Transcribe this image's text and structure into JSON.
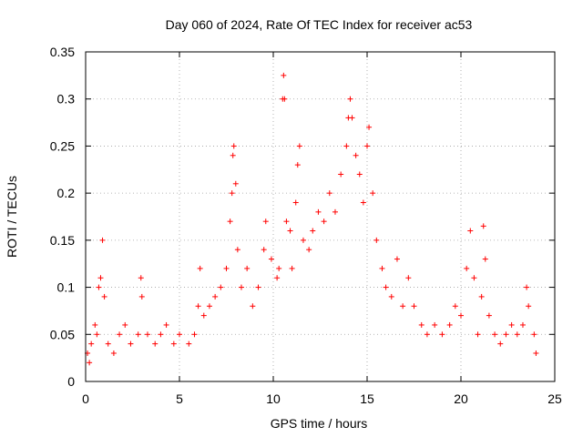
{
  "chart_data": {
    "type": "scatter",
    "title": "Day 060 of 2024, Rate Of TEC Index for receiver ac53",
    "xlabel": "GPS time / hours",
    "ylabel": "ROTI / TECUs",
    "xlim": [
      0,
      25
    ],
    "ylim": [
      0,
      0.35
    ],
    "x_ticks": [
      "0",
      "5",
      "10",
      "15",
      "20",
      "25"
    ],
    "y_ticks": [
      "0",
      "0.05",
      "0.1",
      "0.15",
      "0.2",
      "0.25",
      "0.3",
      "0.35"
    ],
    "grid": true,
    "marker": "+",
    "color": "#ff0000",
    "points": [
      [
        0.1,
        0.03
      ],
      [
        0.2,
        0.02
      ],
      [
        0.3,
        0.04
      ],
      [
        0.5,
        0.06
      ],
      [
        0.6,
        0.05
      ],
      [
        0.7,
        0.1
      ],
      [
        0.8,
        0.11
      ],
      [
        0.9,
        0.15
      ],
      [
        1.0,
        0.09
      ],
      [
        1.2,
        0.04
      ],
      [
        1.5,
        0.03
      ],
      [
        1.8,
        0.05
      ],
      [
        2.1,
        0.06
      ],
      [
        2.4,
        0.04
      ],
      [
        2.8,
        0.05
      ],
      [
        2.95,
        0.11
      ],
      [
        3.0,
        0.09
      ],
      [
        3.3,
        0.05
      ],
      [
        3.7,
        0.04
      ],
      [
        4.0,
        0.05
      ],
      [
        4.3,
        0.06
      ],
      [
        4.7,
        0.04
      ],
      [
        5.0,
        0.05
      ],
      [
        5.5,
        0.04
      ],
      [
        5.8,
        0.05
      ],
      [
        6.0,
        0.08
      ],
      [
        6.1,
        0.12
      ],
      [
        6.3,
        0.07
      ],
      [
        6.6,
        0.08
      ],
      [
        6.9,
        0.09
      ],
      [
        7.2,
        0.1
      ],
      [
        7.5,
        0.12
      ],
      [
        7.7,
        0.17
      ],
      [
        7.8,
        0.2
      ],
      [
        7.85,
        0.24
      ],
      [
        7.9,
        0.25
      ],
      [
        8.0,
        0.21
      ],
      [
        8.1,
        0.14
      ],
      [
        8.3,
        0.1
      ],
      [
        8.6,
        0.12
      ],
      [
        8.9,
        0.08
      ],
      [
        9.2,
        0.1
      ],
      [
        9.5,
        0.14
      ],
      [
        9.6,
        0.17
      ],
      [
        9.9,
        0.13
      ],
      [
        10.2,
        0.11
      ],
      [
        10.3,
        0.12
      ],
      [
        10.5,
        0.3
      ],
      [
        10.55,
        0.325
      ],
      [
        10.6,
        0.3
      ],
      [
        10.7,
        0.17
      ],
      [
        10.9,
        0.16
      ],
      [
        11.0,
        0.12
      ],
      [
        11.2,
        0.19
      ],
      [
        11.3,
        0.23
      ],
      [
        11.4,
        0.25
      ],
      [
        11.6,
        0.15
      ],
      [
        11.9,
        0.14
      ],
      [
        12.1,
        0.16
      ],
      [
        12.4,
        0.18
      ],
      [
        12.7,
        0.17
      ],
      [
        13.0,
        0.2
      ],
      [
        13.3,
        0.18
      ],
      [
        13.6,
        0.22
      ],
      [
        13.9,
        0.25
      ],
      [
        14.0,
        0.28
      ],
      [
        14.1,
        0.3
      ],
      [
        14.2,
        0.28
      ],
      [
        14.4,
        0.24
      ],
      [
        14.6,
        0.22
      ],
      [
        14.8,
        0.19
      ],
      [
        15.0,
        0.25
      ],
      [
        15.1,
        0.27
      ],
      [
        15.3,
        0.2
      ],
      [
        15.5,
        0.15
      ],
      [
        15.8,
        0.12
      ],
      [
        16.0,
        0.1
      ],
      [
        16.3,
        0.09
      ],
      [
        16.6,
        0.13
      ],
      [
        16.9,
        0.08
      ],
      [
        17.2,
        0.11
      ],
      [
        17.5,
        0.08
      ],
      [
        17.9,
        0.06
      ],
      [
        18.2,
        0.05
      ],
      [
        18.6,
        0.06
      ],
      [
        19.0,
        0.05
      ],
      [
        19.4,
        0.06
      ],
      [
        19.7,
        0.08
      ],
      [
        20.0,
        0.07
      ],
      [
        20.3,
        0.12
      ],
      [
        20.5,
        0.16
      ],
      [
        20.7,
        0.11
      ],
      [
        20.9,
        0.05
      ],
      [
        21.1,
        0.09
      ],
      [
        21.2,
        0.165
      ],
      [
        21.3,
        0.13
      ],
      [
        21.5,
        0.07
      ],
      [
        21.8,
        0.05
      ],
      [
        22.1,
        0.04
      ],
      [
        22.4,
        0.05
      ],
      [
        22.7,
        0.06
      ],
      [
        23.0,
        0.05
      ],
      [
        23.3,
        0.06
      ],
      [
        23.5,
        0.1
      ],
      [
        23.6,
        0.08
      ],
      [
        23.9,
        0.05
      ],
      [
        24.0,
        0.03
      ]
    ]
  }
}
